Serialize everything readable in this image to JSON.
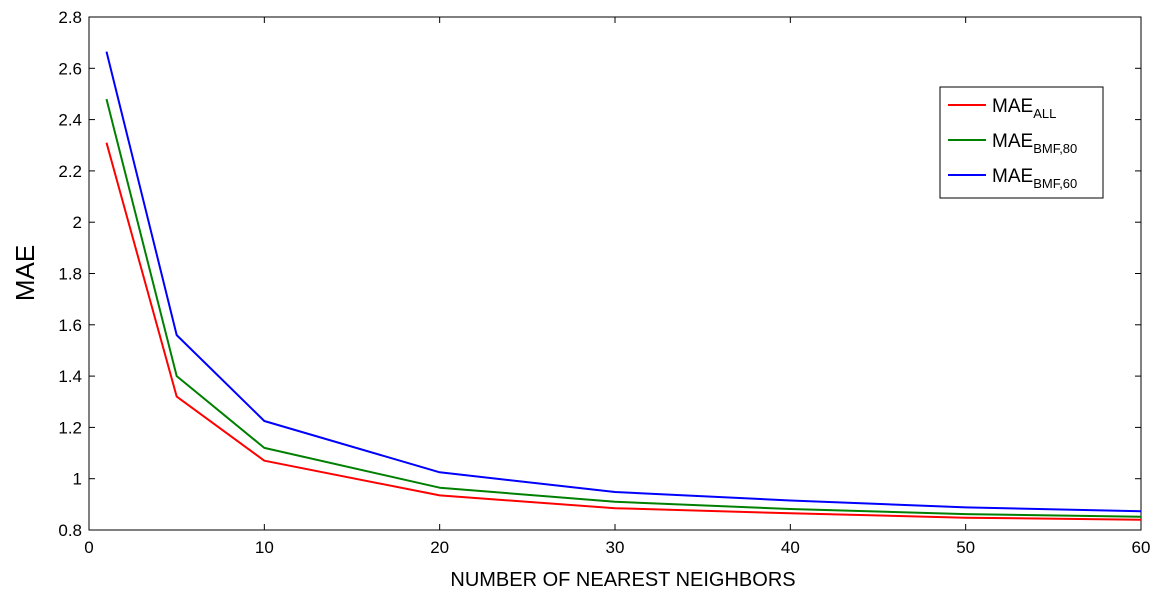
{
  "chart_data": {
    "type": "line",
    "title": "",
    "xlabel": "NUMBER OF NEAREST NEIGHBORS",
    "ylabel": "MAE",
    "xlim": [
      0,
      60
    ],
    "ylim": [
      0.8,
      2.8
    ],
    "xticks": [
      "0",
      "10",
      "20",
      "30",
      "40",
      "50",
      "60"
    ],
    "yticks": [
      "0.8",
      "1",
      "1.2",
      "1.4",
      "1.6",
      "1.8",
      "2",
      "2.2",
      "2.4",
      "2.6",
      "2.8"
    ],
    "grid": false,
    "legend_position": "top-right",
    "x": [
      1,
      5,
      10,
      20,
      30,
      40,
      50,
      60
    ],
    "series": [
      {
        "name": "MAE",
        "subscript": "ALL",
        "color": "#ff0000",
        "values": [
          2.31,
          1.32,
          1.07,
          0.935,
          0.885,
          0.865,
          0.848,
          0.84
        ]
      },
      {
        "name": "MAE",
        "subscript": "BMF,80",
        "color": "#008000",
        "values": [
          2.48,
          1.4,
          1.12,
          0.965,
          0.91,
          0.882,
          0.862,
          0.852
        ]
      },
      {
        "name": "MAE",
        "subscript": "BMF,60",
        "color": "#0000ff",
        "values": [
          2.665,
          1.56,
          1.225,
          1.025,
          0.948,
          0.915,
          0.888,
          0.873
        ]
      }
    ]
  }
}
